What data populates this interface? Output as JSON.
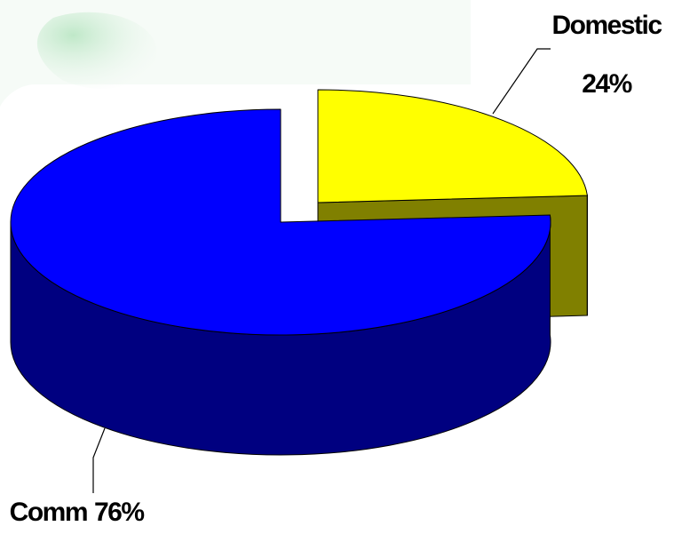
{
  "chart_data": {
    "type": "pie3d",
    "categories": [
      "Domestic",
      "Comm"
    ],
    "values": [
      24,
      76
    ],
    "value_labels": [
      "24%",
      "76%"
    ],
    "colors": [
      "#ffff00",
      "#0000ff"
    ],
    "side_colors": [
      "#808000",
      "#000080"
    ]
  }
}
